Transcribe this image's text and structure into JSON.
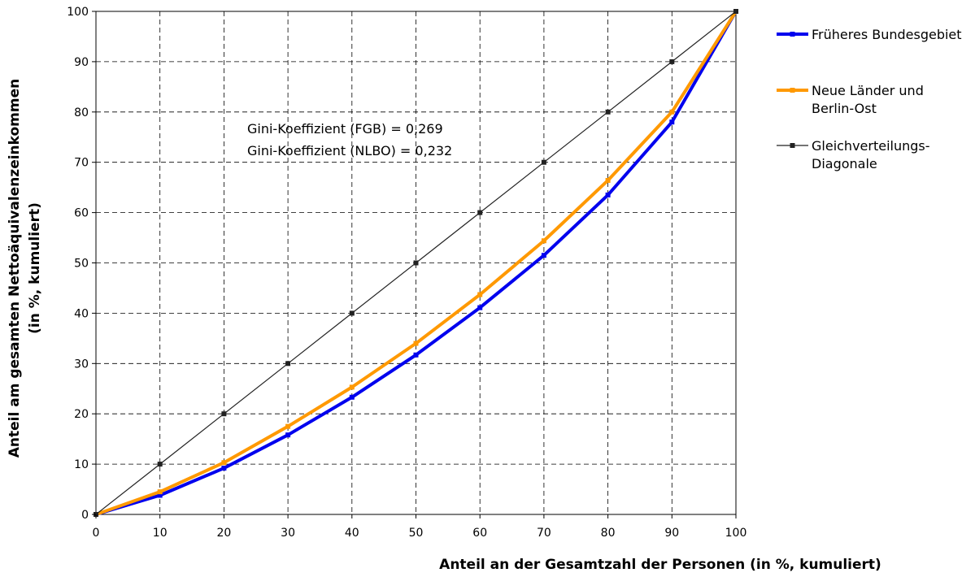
{
  "chart_data": {
    "type": "line",
    "title": "",
    "xlabel": "Anteil an der Gesamtzahl der Personen (in %, kumuliert)",
    "ylabel_lines": [
      "Anteil am gesamten Nettoäquivalenzeinkommen",
      "(in %, kumuliert)"
    ],
    "xlim": [
      0,
      100
    ],
    "ylim": [
      0,
      100
    ],
    "x_ticks": [
      "0",
      "10",
      "20",
      "30",
      "40",
      "50",
      "60",
      "70",
      "80",
      "90",
      "100"
    ],
    "y_ticks": [
      "0",
      "10",
      "20",
      "30",
      "40",
      "50",
      "60",
      "70",
      "80",
      "90",
      "100"
    ],
    "grid": true,
    "legend_position": "right",
    "x": [
      0,
      10,
      20,
      30,
      40,
      50,
      60,
      70,
      80,
      90,
      100
    ],
    "series": [
      {
        "name": "Früheres Bundesgebiet",
        "legend_lines": [
          "Früheres Bundesgebiet"
        ],
        "color": "#0000ee",
        "values": [
          0,
          3.8,
          9.2,
          15.8,
          23.3,
          31.7,
          41.1,
          51.5,
          63.5,
          78.0,
          100
        ]
      },
      {
        "name": "Neue Länder und Berlin-Ost",
        "legend_lines": [
          "Neue Länder und",
          "Berlin-Ost"
        ],
        "color": "#ff9900",
        "values": [
          0,
          4.5,
          10.3,
          17.5,
          25.3,
          34.0,
          43.7,
          54.4,
          66.4,
          80.0,
          100
        ]
      },
      {
        "name": "Gleichverteilungs-Diagonale",
        "legend_lines": [
          "Gleichverteilungs-",
          "Diagonale"
        ],
        "color": "#222222",
        "values": [
          0,
          10,
          20,
          30,
          40,
          50,
          60,
          70,
          80,
          90,
          100
        ]
      }
    ],
    "annotations": [
      "Gini-Koeffizient (FGB) = 0,269",
      "Gini-Koeffizient (NLBO) = 0,232"
    ]
  }
}
